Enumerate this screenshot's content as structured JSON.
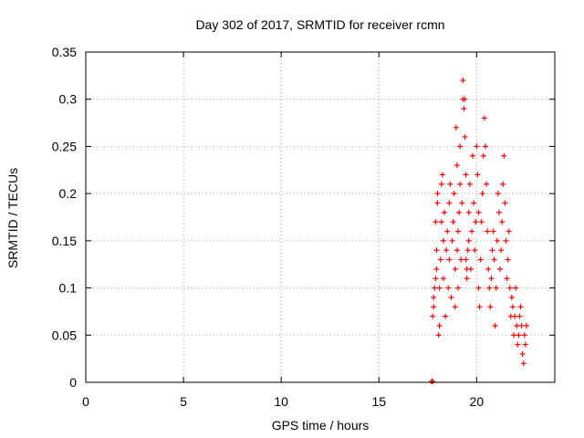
{
  "chart_data": {
    "type": "scatter",
    "title": "Day 302 of 2017, SRMTID for receiver rcmn",
    "xlabel": "GPS time / hours",
    "ylabel": "SRMTID / TECUs",
    "xlim": [
      0,
      24
    ],
    "ylim": [
      0,
      0.35
    ],
    "xticks": [
      0,
      5,
      10,
      15,
      20
    ],
    "yticks": [
      0,
      0.05,
      0.1,
      0.15,
      0.2,
      0.25,
      0.3,
      0.35
    ],
    "xtick_labels": [
      "0",
      "5",
      "10",
      "15",
      "20"
    ],
    "ytick_labels": [
      "0",
      "0.05",
      "0.1",
      "0.15",
      "0.2",
      "0.25",
      "0.3",
      "0.35"
    ],
    "grid": true,
    "marker": "+",
    "series": [
      {
        "name": "SRMTID",
        "color": "#ff0000",
        "points": [
          [
            17.7,
            0.001
          ],
          [
            17.75,
            0.001
          ],
          [
            17.75,
            0.07
          ],
          [
            17.8,
            0.08
          ],
          [
            17.8,
            0.09
          ],
          [
            17.85,
            0.1
          ],
          [
            17.9,
            0.11
          ],
          [
            17.95,
            0.12
          ],
          [
            17.95,
            0.14
          ],
          [
            17.9,
            0.17
          ],
          [
            18.0,
            0.19
          ],
          [
            18.0,
            0.2
          ],
          [
            18.05,
            0.05
          ],
          [
            18.1,
            0.06
          ],
          [
            18.1,
            0.1
          ],
          [
            18.15,
            0.13
          ],
          [
            18.2,
            0.17
          ],
          [
            18.2,
            0.21
          ],
          [
            18.25,
            0.22
          ],
          [
            18.3,
            0.11
          ],
          [
            18.3,
            0.15
          ],
          [
            18.35,
            0.18
          ],
          [
            18.4,
            0.07
          ],
          [
            18.45,
            0.14
          ],
          [
            18.5,
            0.16
          ],
          [
            18.55,
            0.1
          ],
          [
            18.6,
            0.13
          ],
          [
            18.6,
            0.19
          ],
          [
            18.65,
            0.21
          ],
          [
            18.7,
            0.09
          ],
          [
            18.75,
            0.15
          ],
          [
            18.8,
            0.17
          ],
          [
            18.85,
            0.2
          ],
          [
            18.9,
            0.12
          ],
          [
            18.9,
            0.08
          ],
          [
            18.95,
            0.27
          ],
          [
            19.0,
            0.23
          ],
          [
            19.0,
            0.14
          ],
          [
            19.05,
            0.16
          ],
          [
            19.05,
            0.1
          ],
          [
            19.1,
            0.18
          ],
          [
            19.15,
            0.21
          ],
          [
            19.15,
            0.25
          ],
          [
            19.2,
            0.13
          ],
          [
            19.25,
            0.19
          ],
          [
            19.3,
            0.3
          ],
          [
            19.3,
            0.32
          ],
          [
            19.35,
            0.29
          ],
          [
            19.4,
            0.3
          ],
          [
            19.4,
            0.26
          ],
          [
            19.45,
            0.22
          ],
          [
            19.45,
            0.13
          ],
          [
            19.5,
            0.12
          ],
          [
            19.5,
            0.11
          ],
          [
            19.55,
            0.14
          ],
          [
            19.6,
            0.15
          ],
          [
            19.6,
            0.18
          ],
          [
            19.65,
            0.21
          ],
          [
            19.7,
            0.12
          ],
          [
            19.75,
            0.16
          ],
          [
            19.8,
            0.24
          ],
          [
            19.85,
            0.19
          ],
          [
            19.9,
            0.14
          ],
          [
            19.95,
            0.17
          ],
          [
            20.0,
            0.25
          ],
          [
            20.05,
            0.22
          ],
          [
            20.1,
            0.18
          ],
          [
            20.1,
            0.1
          ],
          [
            20.15,
            0.08
          ],
          [
            20.2,
            0.13
          ],
          [
            20.25,
            0.17
          ],
          [
            20.3,
            0.2
          ],
          [
            20.35,
            0.24
          ],
          [
            20.4,
            0.28
          ],
          [
            20.45,
            0.25
          ],
          [
            20.5,
            0.21
          ],
          [
            20.55,
            0.16
          ],
          [
            20.6,
            0.12
          ],
          [
            20.65,
            0.1
          ],
          [
            20.7,
            0.08
          ],
          [
            20.75,
            0.11
          ],
          [
            20.8,
            0.14
          ],
          [
            20.85,
            0.16
          ],
          [
            20.9,
            0.13
          ],
          [
            20.95,
            0.06
          ],
          [
            21.0,
            0.1
          ],
          [
            21.05,
            0.15
          ],
          [
            21.1,
            0.2
          ],
          [
            21.15,
            0.18
          ],
          [
            21.2,
            0.12
          ],
          [
            21.25,
            0.14
          ],
          [
            21.3,
            0.17
          ],
          [
            21.35,
            0.21
          ],
          [
            21.4,
            0.24
          ],
          [
            21.45,
            0.19
          ],
          [
            21.5,
            0.15
          ],
          [
            21.55,
            0.11
          ],
          [
            21.6,
            0.13
          ],
          [
            21.65,
            0.16
          ],
          [
            21.7,
            0.1
          ],
          [
            21.75,
            0.07
          ],
          [
            21.8,
            0.09
          ],
          [
            21.85,
            0.08
          ],
          [
            21.9,
            0.05
          ],
          [
            21.95,
            0.07
          ],
          [
            22.0,
            0.1
          ],
          [
            22.05,
            0.06
          ],
          [
            22.1,
            0.04
          ],
          [
            22.15,
            0.05
          ],
          [
            22.2,
            0.07
          ],
          [
            22.25,
            0.08
          ],
          [
            22.3,
            0.06
          ],
          [
            22.35,
            0.03
          ],
          [
            22.4,
            0.02
          ],
          [
            22.45,
            0.05
          ],
          [
            22.5,
            0.04
          ],
          [
            22.55,
            0.06
          ]
        ]
      }
    ]
  }
}
